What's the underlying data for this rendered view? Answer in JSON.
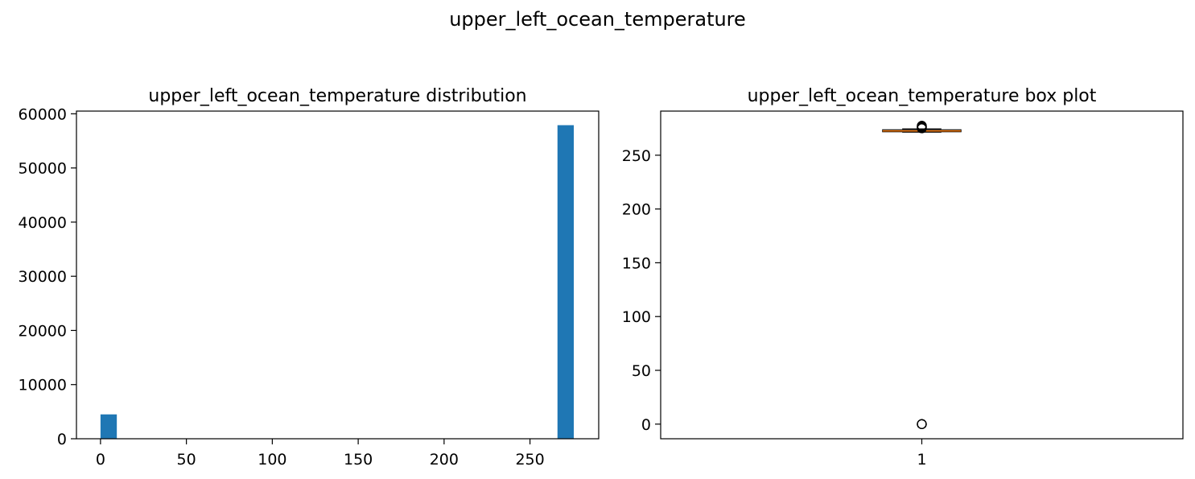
{
  "figure": {
    "suptitle": "upper_left_ocean_temperature"
  },
  "colors": {
    "bar": "#1f77b4",
    "median": "#ff7f0e",
    "axes": "#000000",
    "flier": "#000000"
  },
  "chart_data": [
    {
      "type": "bar",
      "subtype": "histogram",
      "title": "upper_left_ocean_temperature distribution",
      "xlabel": "",
      "ylabel": "",
      "xlim": [
        -14,
        290
      ],
      "ylim": [
        0,
        60500
      ],
      "xticks": [
        0,
        50,
        100,
        150,
        200,
        250
      ],
      "yticks": [
        0,
        10000,
        20000,
        30000,
        40000,
        50000,
        60000
      ],
      "bins": [
        {
          "x0": 0,
          "x1": 9.5,
          "count": 4500
        },
        {
          "x0": 9.5,
          "x1": 19,
          "count": 0
        },
        {
          "x0": 266,
          "x1": 275.5,
          "count": 57900
        }
      ],
      "grid": false,
      "legend": "none"
    },
    {
      "type": "boxplot",
      "title": "upper_left_ocean_temperature box plot",
      "xlabel": "",
      "ylabel": "",
      "categories": [
        "1"
      ],
      "xlim": [
        0.5,
        1.5
      ],
      "ylim": [
        -13.6,
        291
      ],
      "yticks": [
        0,
        50,
        100,
        150,
        200,
        250
      ],
      "box": {
        "whisker_low": 271.4,
        "q1": 271.8,
        "median": 272.6,
        "q3": 273.6,
        "whisker_high": 274.5
      },
      "fliers": [
        0,
        0,
        0,
        275,
        275.5,
        276,
        276.5,
        277,
        277.4
      ],
      "grid": false,
      "legend": "none"
    }
  ]
}
